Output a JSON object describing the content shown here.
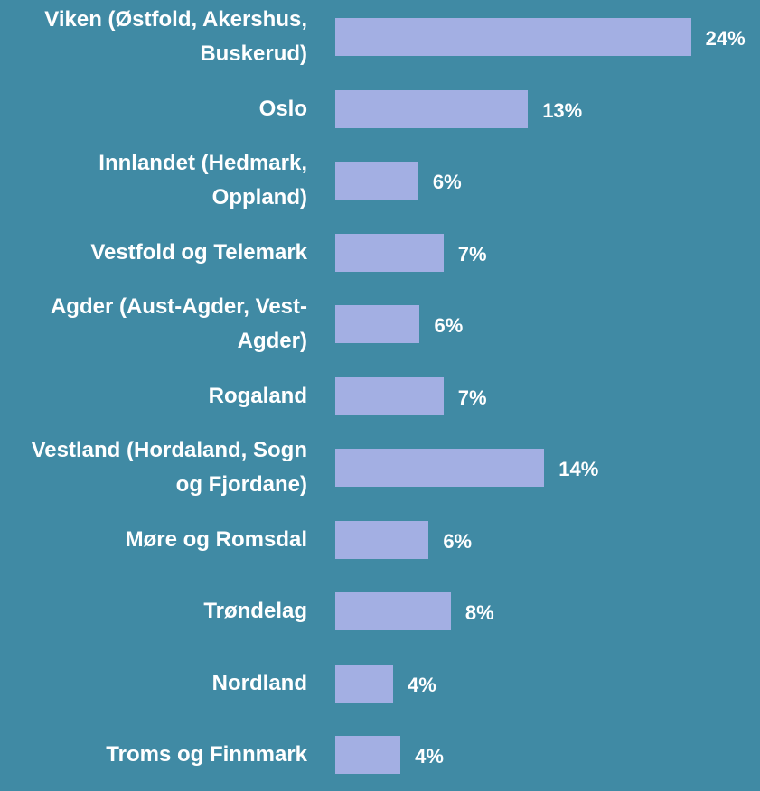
{
  "chart_data": {
    "type": "barh",
    "categories": [
      "Viken (Østfold, Akershus, Buskerud)",
      "Oslo",
      "Innlandet (Hedmark, Oppland)",
      "Vestfold og Telemark",
      "Agder (Aust-Agder, Vest-Agder)",
      "Rogaland",
      "Vestland (Hordaland, Sogn og Fjordane)",
      "Møre og Romsdal",
      "Trøndelag",
      "Nordland",
      "Troms og Finnmark"
    ],
    "values": [
      24.0,
      13.0,
      5.6,
      7.3,
      5.7,
      7.3,
      14.1,
      6.3,
      7.8,
      3.9,
      4.4
    ],
    "value_labels": [
      "24%",
      "13%",
      "6%",
      "7%",
      "6%",
      "7%",
      "14%",
      "6%",
      "8%",
      "4%",
      "4%"
    ],
    "color": "#a3afe3"
  }
}
